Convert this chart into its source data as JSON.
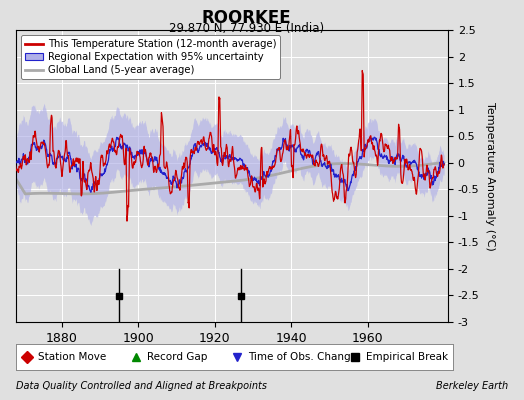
{
  "title": "ROORKEE",
  "subtitle": "29.870 N, 77.930 E (India)",
  "ylabel": "Temperature Anomaly (°C)",
  "xlabel_left": "Data Quality Controlled and Aligned at Breakpoints",
  "xlabel_right": "Berkeley Earth",
  "xlim": [
    1868,
    1981
  ],
  "ylim": [
    -3.0,
    2.5
  ],
  "yticks": [
    -3,
    -2.5,
    -2,
    -1.5,
    -1,
    -0.5,
    0,
    0.5,
    1,
    1.5,
    2,
    2.5
  ],
  "xticks": [
    1880,
    1900,
    1920,
    1940,
    1960
  ],
  "empirical_breaks": [
    1895,
    1927
  ],
  "background_color": "#e0e0e0",
  "plot_bg_color": "#e0e0e0",
  "grid_color": "#ffffff",
  "red_color": "#cc0000",
  "blue_color": "#2222cc",
  "blue_fill_color": "#b0b0e8",
  "gray_color": "#aaaaaa",
  "seed": 12345
}
